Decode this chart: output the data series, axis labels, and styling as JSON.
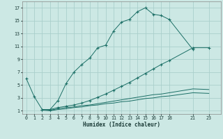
{
  "xlabel": "Humidex (Indice chaleur)",
  "bg_color": "#cce8e4",
  "grid_color": "#aacfcc",
  "line_color": "#1a6e65",
  "xlim": [
    -0.5,
    24.5
  ],
  "ylim": [
    0.5,
    18.0
  ],
  "xticks": [
    0,
    1,
    2,
    3,
    4,
    5,
    6,
    7,
    8,
    9,
    10,
    11,
    12,
    13,
    14,
    15,
    16,
    17,
    18,
    21,
    23
  ],
  "yticks": [
    1,
    3,
    5,
    7,
    9,
    11,
    13,
    15,
    17
  ],
  "line1_x": [
    0,
    1,
    2,
    3,
    4,
    5,
    6,
    7,
    8,
    9,
    10,
    11,
    12,
    13,
    14,
    15,
    16,
    17,
    18,
    21
  ],
  "line1_y": [
    6.0,
    3.2,
    1.2,
    1.2,
    2.6,
    5.2,
    7.0,
    8.2,
    9.2,
    10.8,
    11.2,
    13.4,
    14.8,
    15.2,
    16.4,
    17.0,
    16.0,
    15.8,
    15.2,
    10.5
  ],
  "line2_x": [
    2,
    3,
    4,
    5,
    6,
    7,
    8,
    9,
    10,
    11,
    12,
    13,
    14,
    15,
    16,
    17,
    18,
    21,
    23
  ],
  "line2_y": [
    1.2,
    1.2,
    1.5,
    1.7,
    1.9,
    2.2,
    2.6,
    3.1,
    3.6,
    4.2,
    4.8,
    5.4,
    6.1,
    6.8,
    7.5,
    8.2,
    8.8,
    10.8,
    10.8
  ],
  "line3_x": [
    2,
    3,
    4,
    5,
    6,
    7,
    8,
    9,
    10,
    11,
    12,
    13,
    14,
    15,
    16,
    17,
    18,
    21,
    23
  ],
  "line3_y": [
    1.2,
    1.1,
    1.3,
    1.5,
    1.6,
    1.8,
    1.9,
    2.1,
    2.3,
    2.5,
    2.7,
    2.9,
    3.1,
    3.3,
    3.5,
    3.6,
    3.8,
    4.4,
    4.3
  ],
  "line4_x": [
    2,
    3,
    4,
    5,
    6,
    7,
    8,
    9,
    10,
    11,
    12,
    13,
    14,
    15,
    16,
    17,
    18,
    21,
    23
  ],
  "line4_y": [
    1.1,
    1.0,
    1.2,
    1.3,
    1.5,
    1.6,
    1.8,
    1.9,
    2.1,
    2.2,
    2.4,
    2.5,
    2.7,
    2.9,
    3.0,
    3.2,
    3.3,
    3.8,
    3.7
  ]
}
